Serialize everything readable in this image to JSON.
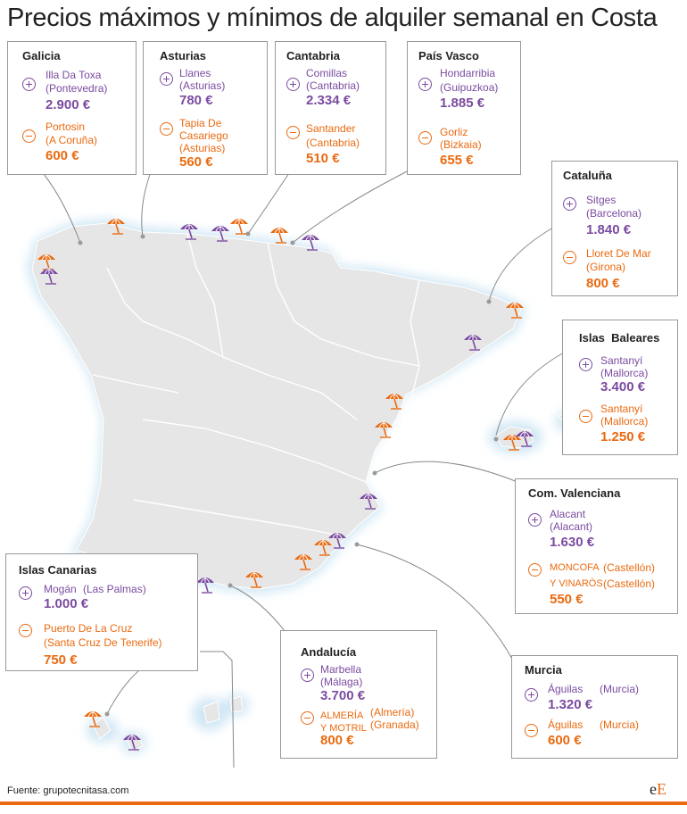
{
  "title": "Precios máximos y mínimos de alquiler semanal en Costa",
  "colors": {
    "max": "#7b4ba0",
    "min": "#ea6a10",
    "land": "#e6e6e6",
    "glow": "#d8ecf7"
  },
  "regions": {
    "galicia": {
      "name": "Galicia",
      "max": {
        "place": "Illa Da Toxa",
        "province": "(Pontevedra)",
        "price": "2.900 €"
      },
      "min": {
        "place": "Portosin",
        "province": "(A Coruña)",
        "price": "600 €"
      }
    },
    "asturias": {
      "name": "Asturias",
      "max": {
        "place": "Llanes",
        "province": "(Asturias)",
        "price": "780 €"
      },
      "min": {
        "place": "Tapia De",
        "place2": "Casariego",
        "province": "(Asturias)",
        "price": "560 €"
      }
    },
    "cantabria": {
      "name": "Cantabria",
      "max": {
        "place": "Comillas",
        "province": "(Cantabria)",
        "price": "2.334 €"
      },
      "min": {
        "place": "Santander",
        "province": "(Cantabria)",
        "price": "510 €"
      }
    },
    "pais_vasco": {
      "name": "País Vasco",
      "max": {
        "place": "Hondarribia",
        "province": "(Guipuzkoa)",
        "price": "1.885 €"
      },
      "min": {
        "place": "Gorliz",
        "province": "(Bizkaia)",
        "price": "655 €"
      }
    },
    "cataluna": {
      "name": "Cataluña",
      "max": {
        "place": "Sitges",
        "province": "(Barcelona)",
        "price": "1.840 €"
      },
      "min": {
        "place": "Lloret De Mar",
        "province": "(Girona)",
        "price": "800 €"
      }
    },
    "baleares": {
      "name": "Islas  Baleares",
      "max": {
        "place": "Santanyí",
        "province": "(Mallorca)",
        "price": "3.400 €"
      },
      "min": {
        "place": "Santanyí",
        "province": "(Mallorca)",
        "price": "1.250 €"
      }
    },
    "valenciana": {
      "name": "Com. Valenciana",
      "max": {
        "place": "Alacant",
        "province": "(Alacant)",
        "price": "1.630 €"
      },
      "min": {
        "place": "MONCOFA",
        "province": "(Castellón)",
        "place2": "Y VINARÒS",
        "province2": "(Castellón)",
        "price": "550 €"
      }
    },
    "canarias": {
      "name": "Islas Canarias",
      "max": {
        "place": "Mogán",
        "province": "(Las Palmas)",
        "price": "1.000 €"
      },
      "min": {
        "place": "Puerto De La Cruz",
        "province": "(Santa Cruz De Tenerife)",
        "price": "750 €"
      }
    },
    "andalucia": {
      "name": "Andalucía",
      "max": {
        "place": "Marbella",
        "province": "(Málaga)",
        "price": "3.700 €"
      },
      "min": {
        "place": "ALMERÍA",
        "province": "(Almería)",
        "place2": "Y MOTRIL",
        "province2": "(Granada)",
        "price": "800 €"
      }
    },
    "murcia": {
      "name": "Murcia",
      "max": {
        "place": "Águilas",
        "province": "(Murcia)",
        "price": "1.320 €"
      },
      "min": {
        "place": "Águilas",
        "province": "(Murcia)",
        "price": "600 €"
      }
    }
  },
  "source": "Fuente: grupotecnitasa.com",
  "logo": {
    "e": "e",
    "E": "E"
  }
}
